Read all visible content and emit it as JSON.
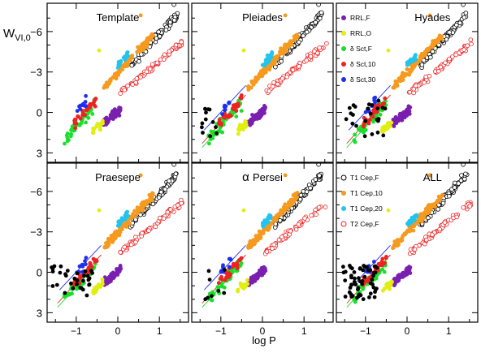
{
  "chart_data": {
    "type": "scatter",
    "xlabel": "log P",
    "ylabel_main": "W",
    "ylabel_sub": "VI,0",
    "x_ticks": [
      "−1",
      "0",
      "1"
    ],
    "x_tick_values": [
      -1,
      0,
      1
    ],
    "y_ticks": [
      "−6",
      "−3",
      "0",
      "3"
    ],
    "y_tick_values": [
      -6,
      -3,
      0,
      3
    ],
    "xlim": [
      -1.7,
      1.7
    ],
    "ylim": [
      3.7,
      -8.1
    ],
    "y_inverted": true,
    "panels": [
      {
        "title": "Template",
        "variant": 0,
        "lines": false,
        "legend_block": -1
      },
      {
        "title": "Pleiades",
        "variant": 1,
        "lines": true,
        "legend_block": -1
      },
      {
        "title": "Hyades",
        "variant": 2,
        "lines": true,
        "legend_block": 0
      },
      {
        "title": "Praesepe",
        "variant": 3,
        "lines": true,
        "legend_block": -1
      },
      {
        "title": "Persei",
        "title_prefix": "α",
        "variant": 4,
        "lines": true,
        "legend_block": -1
      },
      {
        "title": "ALL",
        "variant": 5,
        "lines": true,
        "legend_block": 1
      }
    ],
    "series": [
      {
        "name": "RRL,F",
        "marker": "filled",
        "color": "#7a1fb0",
        "xmin": -0.35,
        "xmax": 0.08,
        "slope": -2.5,
        "intercept": -0.05,
        "scatter": 0.25,
        "n": 70
      },
      {
        "name": "RRL,O",
        "marker": "filled",
        "color": "#e0ee10",
        "xmin": -0.6,
        "xmax": -0.35,
        "slope": -2.6,
        "intercept": -0.2,
        "scatter": 0.25,
        "n": 20
      },
      {
        "name": "δ Sct,F",
        "marker": "filled",
        "color": "#18e02a",
        "xmin": -1.3,
        "xmax": -0.5,
        "slope": -3.3,
        "intercept": -2.3,
        "scatter": 0.4,
        "n": 45
      },
      {
        "name": "δ Sct,10",
        "marker": "filled",
        "color": "#ee2222",
        "xmin": -1.05,
        "xmax": -0.5,
        "slope": -3.3,
        "intercept": -2.65,
        "scatter": 0.3,
        "n": 28
      },
      {
        "name": "δ Sct,30",
        "marker": "filled",
        "color": "#1f2fee",
        "xmin": -1.0,
        "xmax": -0.75,
        "slope": -3.3,
        "intercept": -3.3,
        "scatter": 0.3,
        "n": 10
      },
      {
        "name": "T1 Cep,F",
        "marker": "open",
        "color": "#000000",
        "xmin": 0.3,
        "xmax": 1.45,
        "slope": -3.3,
        "intercept": -2.5,
        "scatter": 0.25,
        "n": 85
      },
      {
        "name": "T1 Cep,10",
        "marker": "filled",
        "color": "#f59a1e",
        "xmin": -0.35,
        "xmax": 0.85,
        "slope": -3.3,
        "intercept": -2.95,
        "scatter": 0.25,
        "n": 120
      },
      {
        "name": "T1 Cep,20",
        "marker": "filled",
        "color": "#22c4ee",
        "xmin": 0.0,
        "xmax": 0.25,
        "slope": -3.3,
        "intercept": -3.5,
        "scatter": 0.2,
        "n": 25
      },
      {
        "name": "T2 Cep,F",
        "marker": "open",
        "color": "#ee2222",
        "xmin": 0.05,
        "xmax": 1.55,
        "slope": -2.5,
        "intercept": -1.3,
        "scatter": 0.2,
        "n": 70
      }
    ],
    "cluster_black": [
      {
        "variant": 1,
        "xmin": -1.55,
        "xmax": -1.05,
        "ymin": -0.3,
        "ymax": 2.0,
        "n": 12
      },
      {
        "variant": 2,
        "xmin": -1.5,
        "xmax": -0.5,
        "ymin": -1.0,
        "ymax": 1.8,
        "n": 24
      },
      {
        "variant": 3,
        "xmin": -1.6,
        "xmax": -0.6,
        "ymin": -0.5,
        "ymax": 1.8,
        "n": 32
      },
      {
        "variant": 4,
        "xmin": -1.4,
        "xmax": -0.9,
        "ymin": -0.2,
        "ymax": 2.0,
        "n": 8
      },
      {
        "variant": 5,
        "xmin": -1.55,
        "xmax": -0.7,
        "ymin": -0.6,
        "ymax": 2.0,
        "n": 60
      }
    ],
    "reference_lines": [
      {
        "color": "#ee2222",
        "x0": -1.45,
        "y0": 2.3,
        "x1": -0.4,
        "y1": -1.3
      },
      {
        "color": "#1f2fee",
        "x0": -1.4,
        "y0": 1.3,
        "x1": -0.4,
        "y1": -2.0
      },
      {
        "color": "#18e02a",
        "x0": -1.45,
        "y0": 2.6,
        "x1": -0.5,
        "y1": -0.6
      }
    ]
  }
}
